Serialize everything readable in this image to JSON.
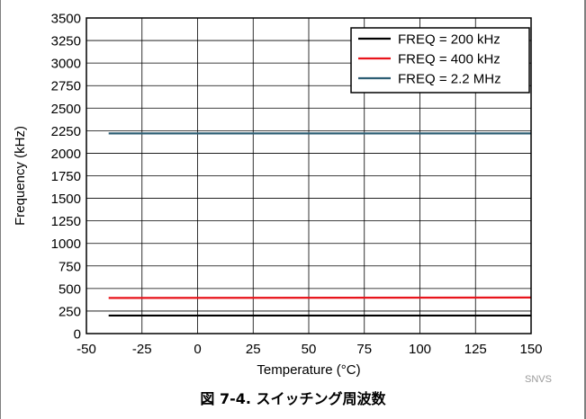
{
  "chart_data": {
    "type": "line",
    "xlabel": "Temperature (°C)",
    "ylabel": "Frequency (kHz)",
    "xlim": [
      -50,
      150
    ],
    "ylim": [
      0,
      3500
    ],
    "xticks": [
      -50,
      -25,
      0,
      25,
      50,
      75,
      100,
      125,
      150
    ],
    "yticks": [
      0,
      250,
      500,
      750,
      1000,
      1250,
      1500,
      1750,
      2000,
      2250,
      2500,
      2750,
      3000,
      3250,
      3500
    ],
    "grid": true,
    "legend_position": "top-right",
    "series": [
      {
        "name": "FREQ = 200 kHz",
        "color": "#000000",
        "x": [
          -40,
          150
        ],
        "y": [
          200,
          200
        ]
      },
      {
        "name": "FREQ = 400 kHz",
        "color": "#e8141b",
        "x": [
          -40,
          150
        ],
        "y": [
          395,
          400
        ]
      },
      {
        "name": "FREQ = 2.2 MHz",
        "color": "#2c5d73",
        "x": [
          -40,
          150
        ],
        "y": [
          2220,
          2220
        ]
      }
    ]
  },
  "caption": "図 7-4. スイッチング周波数",
  "watermark": "SNVS"
}
